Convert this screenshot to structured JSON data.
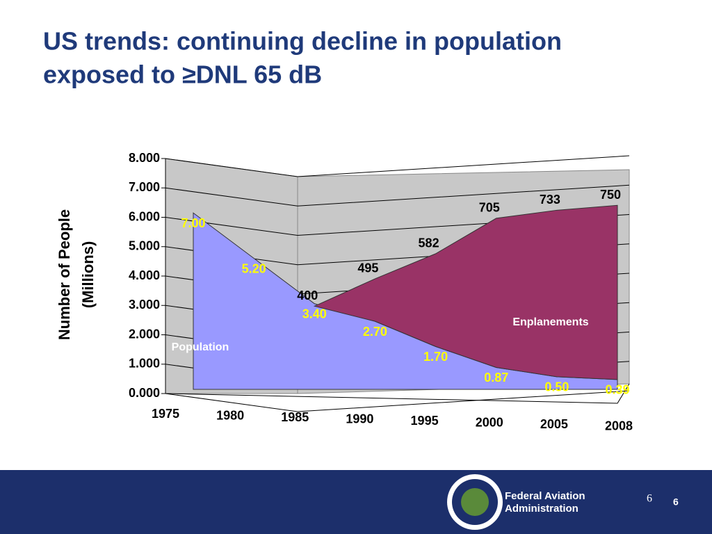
{
  "chart_data": {
    "type": "area",
    "title": [
      "US trends:  continuing decline in population",
      "exposed to ≥DNL 65 dB"
    ],
    "ylabel": [
      "Number of People",
      "(Millions)"
    ],
    "categories": [
      "1975",
      "1980",
      "1985",
      "1990",
      "1995",
      "2000",
      "2005",
      "2008"
    ],
    "ylim": [
      0,
      8
    ],
    "yticks": [
      {
        "value": 0,
        "label": "0.000"
      },
      {
        "value": 1,
        "label": "1.000"
      },
      {
        "value": 2,
        "label": "2.000"
      },
      {
        "value": 3,
        "label": "3.000"
      },
      {
        "value": 4,
        "label": "4.000"
      },
      {
        "value": 5,
        "label": "5.000"
      },
      {
        "value": 6,
        "label": "6.000"
      },
      {
        "value": 7,
        "label": "7.000"
      },
      {
        "value": 8,
        "label": "8.000"
      }
    ],
    "y2lim": [
      111,
      811
    ],
    "grid": true,
    "series": [
      {
        "name": "Population",
        "color": "#9999ff",
        "values": [
          7.0,
          5.2,
          3.4,
          2.7,
          1.7,
          0.87,
          0.5,
          0.39
        ],
        "value_labels": [
          "7.00",
          "5.20",
          "3.40",
          "2.70",
          "1.70",
          "0.87",
          "0.50",
          "0.39"
        ]
      },
      {
        "name": "Enplanements",
        "color": "#993366",
        "axis": "y2",
        "values": [
          null,
          null,
          400,
          495,
          582,
          705,
          733,
          750
        ]
      }
    ]
  },
  "footer": {
    "org": [
      "Federal Aviation",
      "Administration"
    ],
    "page": "6",
    "page_bold": "6"
  }
}
